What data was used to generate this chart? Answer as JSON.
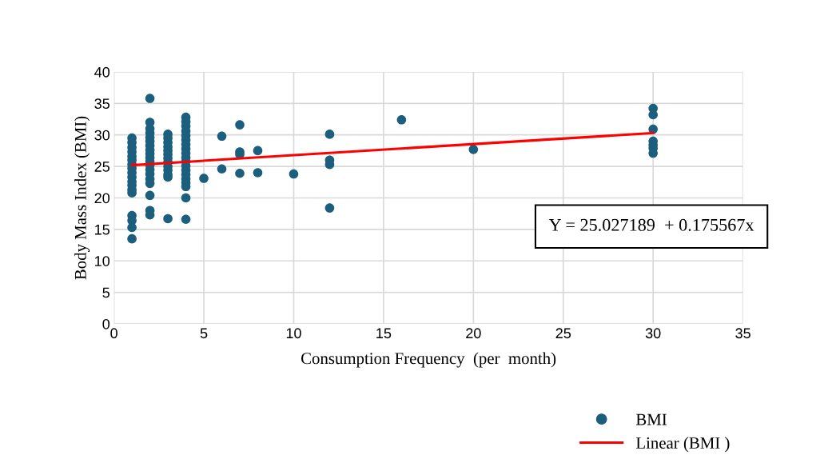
{
  "chart_data": {
    "type": "scatter",
    "xlabel": "Consumption Frequency  (per  month)",
    "ylabel": "Body Mass Index (BMI)",
    "xlim": [
      0,
      35
    ],
    "xticks": [
      0,
      5,
      10,
      15,
      20,
      25,
      30,
      35
    ],
    "ylim": [
      0,
      40
    ],
    "yticks": [
      0,
      5,
      10,
      15,
      20,
      25,
      30,
      35,
      40
    ],
    "grid": true,
    "legend": "bottom right",
    "marker": "circle",
    "annotations": [
      "Y = 25.027189  + 0.175567x"
    ],
    "series": [
      {
        "name": "BMI",
        "color": "#1b5e7e",
        "x": [
          1,
          1,
          1,
          1,
          1,
          1,
          1,
          1,
          1,
          1,
          1,
          1,
          1,
          1,
          1,
          1,
          1,
          1,
          2,
          2,
          2,
          2,
          2,
          2,
          2,
          2,
          2,
          2,
          2,
          2,
          2,
          2,
          2,
          2,
          2,
          2,
          2,
          3,
          3,
          3,
          3,
          3,
          3,
          3,
          3,
          3,
          3,
          3,
          3,
          3,
          4,
          4,
          4,
          4,
          4,
          4,
          4,
          4,
          4,
          4,
          4,
          4,
          4,
          4,
          4,
          4,
          4,
          4,
          4,
          5,
          6,
          6,
          7,
          7,
          7,
          7,
          8,
          8,
          10,
          12,
          12,
          12,
          12,
          16,
          20,
          30,
          30,
          30,
          30,
          30,
          30,
          30
        ],
        "values": [
          29.5,
          28.8,
          28,
          27.3,
          26.6,
          26,
          25.3,
          24.7,
          24,
          23.3,
          22.6,
          22,
          21.3,
          20.8,
          17.2,
          16.4,
          15.3,
          13.5,
          35.8,
          32,
          31,
          30.3,
          29.6,
          29,
          28.3,
          27.6,
          27,
          26.4,
          25.8,
          25.2,
          24.5,
          23.8,
          23,
          22.3,
          20.4,
          18,
          17.3,
          30.1,
          29.5,
          28.8,
          28.1,
          27.5,
          26.9,
          26.3,
          25.7,
          25,
          24.4,
          23.7,
          23.3,
          16.7,
          32.8,
          32.1,
          31.4,
          30.6,
          29.9,
          29.2,
          28.5,
          27.8,
          27.1,
          26.4,
          25.8,
          25.1,
          24.4,
          23.7,
          23,
          22.4,
          21.8,
          20,
          16.6,
          23.1,
          29.8,
          24.6,
          31.6,
          27.3,
          26.9,
          23.9,
          27.5,
          24,
          23.8,
          30.1,
          26,
          25.3,
          18.4,
          32.4,
          27.7,
          34.2,
          33.2,
          30.9,
          29,
          28.4,
          27.9,
          27.1
        ]
      },
      {
        "name": "Linear (BMI )",
        "type": "line",
        "color": "#ff0000",
        "marker": "none",
        "line_style": "solid",
        "x": [
          1,
          30
        ],
        "values": [
          25.2,
          30.3
        ]
      }
    ]
  }
}
